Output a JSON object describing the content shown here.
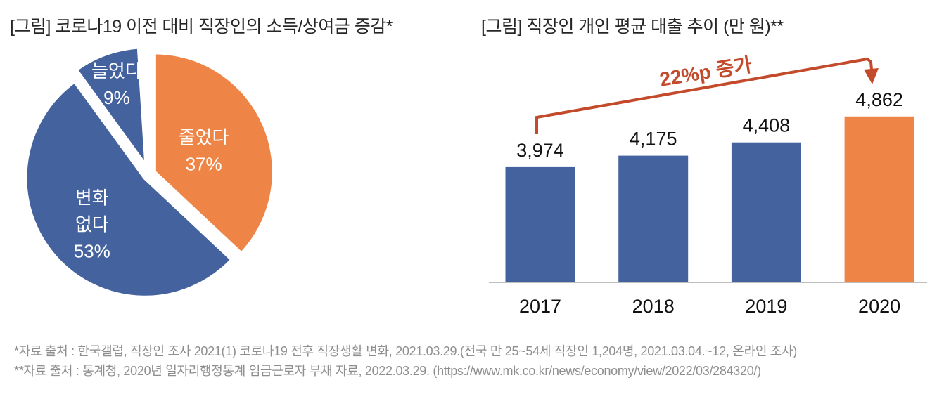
{
  "page": {
    "background": "#ffffff"
  },
  "left_figure": {
    "title": "[그림] 코로나19 이전 대비 직장인의 소득/상여금 증감*"
  },
  "right_figure": {
    "title": "[그림] 직장인 개인 평균 대출 추이 (만 원)**"
  },
  "sources": {
    "line1": "*자료 출처 : 한국갤럽, 직장인 조사 2021(1) 코로나19 전후 직장생활 변화, 2021.03.29.(전국 만 25~54세 직장인 1,204명, 2021.03.04.~12, 온라인 조사)",
    "line2": "**자료 출처 : 통계청, 2020년 일자리행정통계 임금근로자 부채 자료, 2022.03.29. (https://www.mk.co.kr/news/economy/view/2022/03/284320/)"
  },
  "colors": {
    "blue": "#44639e",
    "orange": "#ee8445",
    "annotation_red": "#c34a2a",
    "axis_gray": "#bdbdbd",
    "pie_label_white": "#ffffff",
    "title_text": "#262626",
    "source_text": "#8e8e8e"
  },
  "chart_data": [
    {
      "type": "pie",
      "title": "[그림] 코로나19 이전 대비 직장인의 소득/상여금 증감*",
      "start_angle": "12-oclock",
      "direction": "clockwise",
      "slices": [
        {
          "label": "줄었다",
          "pct": 37,
          "label_lines": [
            "줄었다",
            "37%"
          ],
          "color": "#ee8445"
        },
        {
          "label": "변화 없다",
          "pct": 53,
          "label_lines": [
            "변화",
            "없다",
            "53%"
          ],
          "color": "#44639e"
        },
        {
          "label": "늘었다",
          "pct": 9,
          "label_lines": [
            "늘었다",
            "9%"
          ],
          "color": "#44639e"
        }
      ]
    },
    {
      "type": "bar",
      "title": "[그림] 직장인 개인 평균 대출 추이 (만 원)**",
      "unit": "만 원",
      "categories": [
        "2017",
        "2018",
        "2019",
        "2020"
      ],
      "values": [
        3974,
        4175,
        4408,
        4862
      ],
      "value_labels": [
        "3,974",
        "4,175",
        "4,408",
        "4,862"
      ],
      "bar_colors": [
        "#44639e",
        "#44639e",
        "#44639e",
        "#ee8445"
      ],
      "annotation": {
        "text": "22%p 증가",
        "from": "2017",
        "to": "2020"
      },
      "baseline_axis": true,
      "approx_value_axis_min": 1950,
      "legend": "none",
      "grid": "off"
    }
  ]
}
